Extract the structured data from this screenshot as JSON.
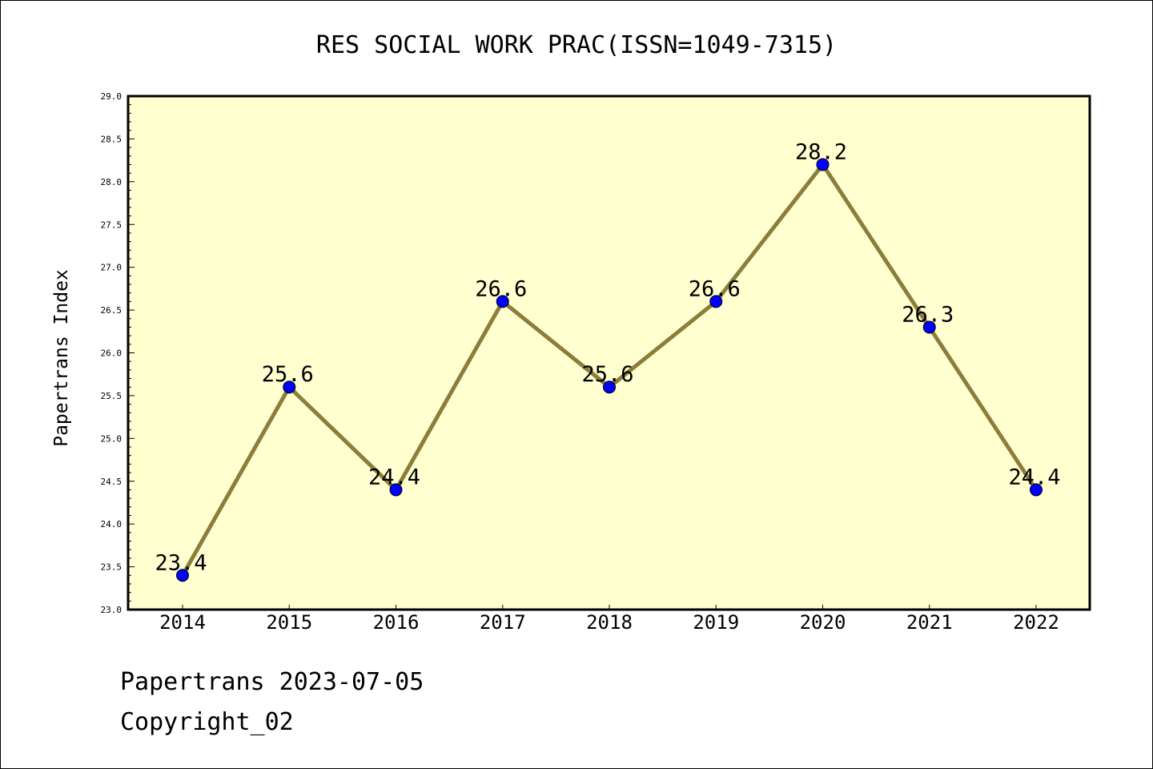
{
  "chart_data": {
    "type": "line",
    "title": "RES SOCIAL WORK PRAC(ISSN=1049-7315)",
    "xlabel": "",
    "ylabel": "Papertrans Index",
    "categories": [
      "2014",
      "2015",
      "2016",
      "2017",
      "2018",
      "2019",
      "2020",
      "2021",
      "2022"
    ],
    "series": [
      {
        "values": [
          23.4,
          25.6,
          24.4,
          26.6,
          25.6,
          26.6,
          28.2,
          26.3,
          24.4
        ]
      }
    ],
    "data_labels": [
      "23.4",
      "25.6",
      "24.4",
      "26.6",
      "25.6",
      "26.6",
      "28.2",
      "26.3",
      "24.4"
    ],
    "ylim": [
      23.0,
      29.0
    ],
    "yticks": [
      "23.0",
      "23.5",
      "24.0",
      "24.5",
      "25.0",
      "25.5",
      "26.0",
      "26.5",
      "27.0",
      "27.5",
      "28.0",
      "28.5",
      "29.0"
    ],
    "grid": false,
    "legend": "none",
    "colors": {
      "plot_background": "#ffffd0",
      "line": "#8b7d3a",
      "marker": "#0000ff"
    }
  },
  "footer": {
    "line1": "Papertrans 2023-07-05",
    "line2": "Copyright_02"
  }
}
